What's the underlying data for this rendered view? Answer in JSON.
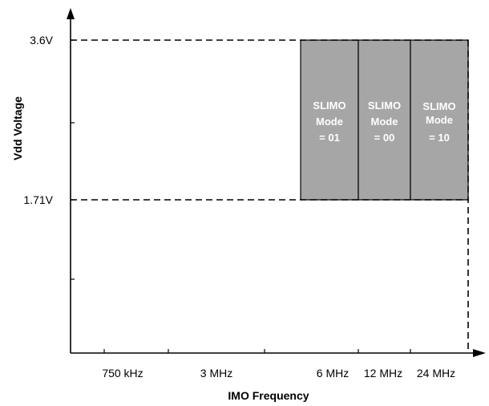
{
  "chart_data": {
    "type": "area",
    "xlabel": "IMO  Frequency",
    "ylabel": "Vdd Voltage",
    "x_ticks": [
      "750 kHz",
      "3 MHz",
      "6 MHz",
      "12 MHz",
      "24 MHz"
    ],
    "y_ticks": [
      "1.71V",
      "3.6V"
    ],
    "y_range": [
      "1.71V",
      "3.6V"
    ],
    "regions": [
      {
        "lines": [
          "SLIMO",
          "Mode",
          "= 01"
        ],
        "x_from": "6 MHz region start",
        "x_to": "6 MHz",
        "y_from": "1.71V",
        "y_to": "3.6V"
      },
      {
        "lines": [
          "SLIMO",
          "Mode",
          "= 00"
        ],
        "x_from": "6 MHz",
        "x_to": "12 MHz",
        "y_from": "1.71V",
        "y_to": "3.6V"
      },
      {
        "lines": [
          "SLIMO",
          "Mode",
          "= 10"
        ],
        "x_from": "12 MHz",
        "x_to": "24 MHz",
        "y_from": "1.71V",
        "y_to": "3.6V"
      }
    ],
    "region_color": "#a6a6a6",
    "grid": false
  }
}
